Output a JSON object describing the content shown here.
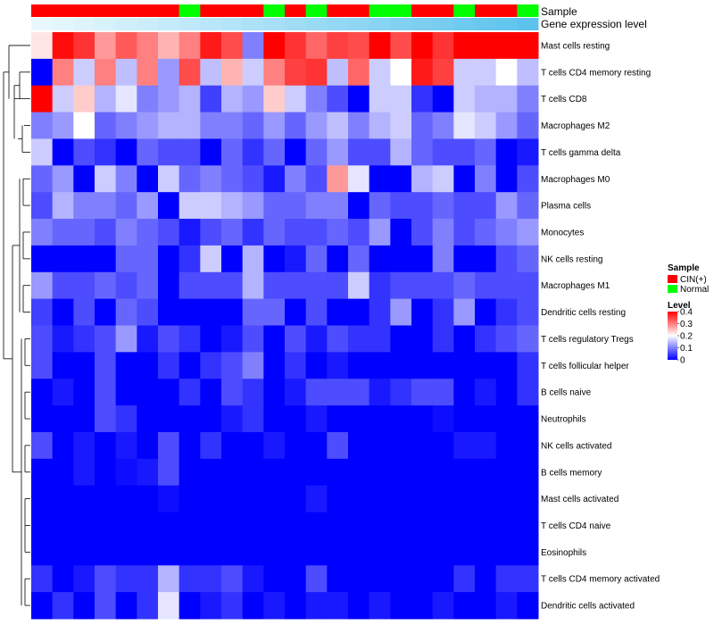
{
  "chart_data": {
    "type": "heatmap",
    "annotation_labels": {
      "sample": "Sample",
      "gene_expression": "Gene expression level"
    },
    "samples": [
      "CIN(+)",
      "CIN(+)",
      "CIN(+)",
      "CIN(+)",
      "CIN(+)",
      "CIN(+)",
      "CIN(+)",
      "Normal",
      "CIN(+)",
      "CIN(+)",
      "CIN(+)",
      "Normal",
      "CIN(+)",
      "Normal",
      "CIN(+)",
      "CIN(+)",
      "Normal",
      "Normal",
      "CIN(+)",
      "CIN(+)",
      "Normal",
      "CIN(+)",
      "CIN(+)",
      "Normal"
    ],
    "gene_expression_level": [
      0.05,
      0.08,
      0.12,
      0.16,
      0.2,
      0.24,
      0.28,
      0.32,
      0.36,
      0.4,
      0.44,
      0.48,
      0.52,
      0.56,
      0.6,
      0.64,
      0.68,
      0.72,
      0.76,
      0.8,
      0.84,
      0.88,
      0.92,
      0.96
    ],
    "rows": [
      {
        "label": "Mast cells resting",
        "values": [
          0.22,
          0.39,
          0.36,
          0.28,
          0.33,
          0.3,
          0.26,
          0.3,
          0.38,
          0.34,
          0.1,
          0.4,
          0.36,
          0.32,
          0.35,
          0.34,
          0.4,
          0.34,
          0.4,
          0.36,
          0.4,
          0.4,
          0.4,
          0.4
        ]
      },
      {
        "label": "T cells CD4 memory resting",
        "values": [
          0.0,
          0.3,
          0.16,
          0.3,
          0.15,
          0.3,
          0.12,
          0.34,
          0.15,
          0.26,
          0.16,
          0.3,
          0.35,
          0.36,
          0.15,
          0.32,
          0.16,
          0.2,
          0.38,
          0.35,
          0.16,
          0.16,
          0.2,
          0.15
        ]
      },
      {
        "label": "T cells CD8",
        "values": [
          0.4,
          0.16,
          0.24,
          0.14,
          0.18,
          0.1,
          0.12,
          0.14,
          0.05,
          0.14,
          0.12,
          0.24,
          0.16,
          0.1,
          0.06,
          0.0,
          0.16,
          0.16,
          0.04,
          0.0,
          0.16,
          0.14,
          0.14,
          0.1
        ]
      },
      {
        "label": "Macrophages M2",
        "values": [
          0.1,
          0.12,
          0.2,
          0.08,
          0.1,
          0.12,
          0.14,
          0.14,
          0.1,
          0.1,
          0.08,
          0.12,
          0.08,
          0.12,
          0.15,
          0.1,
          0.14,
          0.16,
          0.08,
          0.1,
          0.18,
          0.16,
          0.12,
          0.08
        ]
      },
      {
        "label": "T cells gamma delta",
        "values": [
          0.16,
          0.0,
          0.06,
          0.04,
          0.0,
          0.08,
          0.06,
          0.06,
          0.0,
          0.08,
          0.04,
          0.08,
          0.0,
          0.08,
          0.12,
          0.06,
          0.06,
          0.14,
          0.08,
          0.06,
          0.06,
          0.08,
          0.0,
          0.02
        ]
      },
      {
        "label": "Macrophages M0",
        "values": [
          0.08,
          0.12,
          0.0,
          0.16,
          0.1,
          0.0,
          0.16,
          0.08,
          0.1,
          0.08,
          0.06,
          0.02,
          0.1,
          0.06,
          0.28,
          0.18,
          0.0,
          0.0,
          0.14,
          0.16,
          0.0,
          0.1,
          0.0,
          0.06
        ]
      },
      {
        "label": "Plasma cells",
        "values": [
          0.06,
          0.14,
          0.1,
          0.1,
          0.08,
          0.12,
          0.0,
          0.16,
          0.16,
          0.14,
          0.12,
          0.08,
          0.08,
          0.1,
          0.1,
          0.0,
          0.08,
          0.06,
          0.06,
          0.08,
          0.06,
          0.06,
          0.12,
          0.08
        ]
      },
      {
        "label": "Monocytes",
        "values": [
          0.1,
          0.08,
          0.08,
          0.06,
          0.1,
          0.08,
          0.06,
          0.02,
          0.06,
          0.08,
          0.04,
          0.08,
          0.06,
          0.06,
          0.08,
          0.06,
          0.12,
          0.0,
          0.06,
          0.1,
          0.06,
          0.08,
          0.1,
          0.12
        ]
      },
      {
        "label": "NK cells resting",
        "values": [
          0.0,
          0.0,
          0.0,
          0.0,
          0.08,
          0.08,
          0.0,
          0.04,
          0.16,
          0.0,
          0.14,
          0.0,
          0.02,
          0.08,
          0.0,
          0.08,
          0.0,
          0.0,
          0.0,
          0.1,
          0.0,
          0.0,
          0.06,
          0.08
        ]
      },
      {
        "label": "Macrophages M1",
        "values": [
          0.12,
          0.06,
          0.06,
          0.08,
          0.06,
          0.08,
          0.0,
          0.06,
          0.06,
          0.06,
          0.14,
          0.06,
          0.06,
          0.06,
          0.06,
          0.16,
          0.04,
          0.06,
          0.06,
          0.06,
          0.08,
          0.06,
          0.06,
          0.06
        ]
      },
      {
        "label": "Dendritic cells resting",
        "values": [
          0.05,
          0.0,
          0.06,
          0.0,
          0.08,
          0.06,
          0.0,
          0.0,
          0.0,
          0.0,
          0.08,
          0.08,
          0.0,
          0.06,
          0.0,
          0.0,
          0.04,
          0.12,
          0.0,
          0.04,
          0.12,
          0.0,
          0.04,
          0.06
        ]
      },
      {
        "label": "T cells regulatory  Tregs",
        "values": [
          0.06,
          0.02,
          0.04,
          0.06,
          0.12,
          0.02,
          0.06,
          0.04,
          0.0,
          0.02,
          0.06,
          0.0,
          0.06,
          0.02,
          0.06,
          0.04,
          0.04,
          0.0,
          0.0,
          0.04,
          0.0,
          0.04,
          0.06,
          0.08
        ]
      },
      {
        "label": "T cells follicular helper",
        "values": [
          0.06,
          0.0,
          0.0,
          0.06,
          0.0,
          0.0,
          0.04,
          0.0,
          0.04,
          0.06,
          0.1,
          0.0,
          0.04,
          0.0,
          0.02,
          0.0,
          0.0,
          0.0,
          0.0,
          0.0,
          0.0,
          0.0,
          0.0,
          0.04
        ]
      },
      {
        "label": "B cells naive",
        "values": [
          0.0,
          0.02,
          0.0,
          0.06,
          0.0,
          0.0,
          0.0,
          0.04,
          0.0,
          0.06,
          0.04,
          0.0,
          0.02,
          0.06,
          0.06,
          0.06,
          0.02,
          0.04,
          0.06,
          0.06,
          0.0,
          0.02,
          0.0,
          0.04
        ]
      },
      {
        "label": "Neutrophils",
        "values": [
          0.0,
          0.0,
          0.0,
          0.06,
          0.04,
          0.0,
          0.0,
          0.0,
          0.0,
          0.02,
          0.04,
          0.0,
          0.0,
          0.02,
          0.0,
          0.0,
          0.0,
          0.0,
          0.0,
          0.01,
          0.0,
          0.0,
          0.0,
          0.0
        ]
      },
      {
        "label": "NK cells activated",
        "values": [
          0.06,
          0.0,
          0.02,
          0.0,
          0.02,
          0.0,
          0.06,
          0.0,
          0.04,
          0.0,
          0.0,
          0.02,
          0.0,
          0.0,
          0.06,
          0.0,
          0.0,
          0.0,
          0.0,
          0.0,
          0.02,
          0.02,
          0.0,
          0.0
        ]
      },
      {
        "label": "B cells memory",
        "values": [
          0.0,
          0.0,
          0.02,
          0.0,
          0.01,
          0.02,
          0.06,
          0.0,
          0.0,
          0.0,
          0.0,
          0.0,
          0.0,
          0.0,
          0.0,
          0.0,
          0.0,
          0.0,
          0.0,
          0.0,
          0.0,
          0.0,
          0.0,
          0.0
        ]
      },
      {
        "label": "Mast cells activated",
        "values": [
          0.0,
          0.0,
          0.0,
          0.0,
          0.0,
          0.0,
          0.01,
          0.0,
          0.0,
          0.0,
          0.0,
          0.0,
          0.0,
          0.02,
          0.0,
          0.0,
          0.0,
          0.0,
          0.0,
          0.0,
          0.0,
          0.0,
          0.0,
          0.0
        ]
      },
      {
        "label": "T cells CD4 naive",
        "values": [
          0.0,
          0.0,
          0.0,
          0.0,
          0.0,
          0.0,
          0.0,
          0.0,
          0.0,
          0.0,
          0.0,
          0.0,
          0.0,
          0.0,
          0.0,
          0.0,
          0.0,
          0.0,
          0.0,
          0.0,
          0.0,
          0.0,
          0.0,
          0.0
        ]
      },
      {
        "label": "Eosinophils",
        "values": [
          0.0,
          0.0,
          0.0,
          0.0,
          0.0,
          0.0,
          0.0,
          0.0,
          0.0,
          0.0,
          0.0,
          0.0,
          0.0,
          0.0,
          0.0,
          0.0,
          0.0,
          0.0,
          0.0,
          0.0,
          0.0,
          0.0,
          0.0,
          0.0
        ]
      },
      {
        "label": "T cells CD4 memory activated",
        "values": [
          0.04,
          0.0,
          0.02,
          0.06,
          0.04,
          0.04,
          0.14,
          0.04,
          0.04,
          0.06,
          0.02,
          0.0,
          0.0,
          0.06,
          0.0,
          0.0,
          0.0,
          0.0,
          0.0,
          0.0,
          0.04,
          0.0,
          0.04,
          0.04
        ]
      },
      {
        "label": "Dendritic cells activated",
        "values": [
          0.0,
          0.04,
          0.0,
          0.06,
          0.0,
          0.04,
          0.18,
          0.0,
          0.02,
          0.04,
          0.0,
          0.02,
          0.0,
          0.02,
          0.02,
          0.0,
          0.02,
          0.0,
          0.0,
          0.02,
          0.0,
          0.0,
          0.02,
          0.0
        ]
      }
    ],
    "color_scale": {
      "min": 0,
      "mid": 0.2,
      "max": 0.4,
      "low_color": "#0000ff",
      "mid_color": "#ffffff",
      "high_color": "#ff0000"
    },
    "legend": {
      "sample_title": "Sample",
      "sample_entries": [
        {
          "label": "CIN(+)",
          "color": "#ff0000"
        },
        {
          "label": "Normal",
          "color": "#00ff00"
        }
      ],
      "level_title": "Level",
      "level_ticks": [
        0.4,
        0.3,
        0.2,
        0.1,
        0
      ],
      "level_tick_labels": [
        "0.4",
        "0.3",
        "0.2",
        "0.1",
        "0"
      ]
    },
    "annotation_colors": {
      "CIN(+)": "#ff0000",
      "Normal": "#00ff00",
      "gene_low": "#f0fbff",
      "gene_high": "#57c1ec"
    }
  }
}
